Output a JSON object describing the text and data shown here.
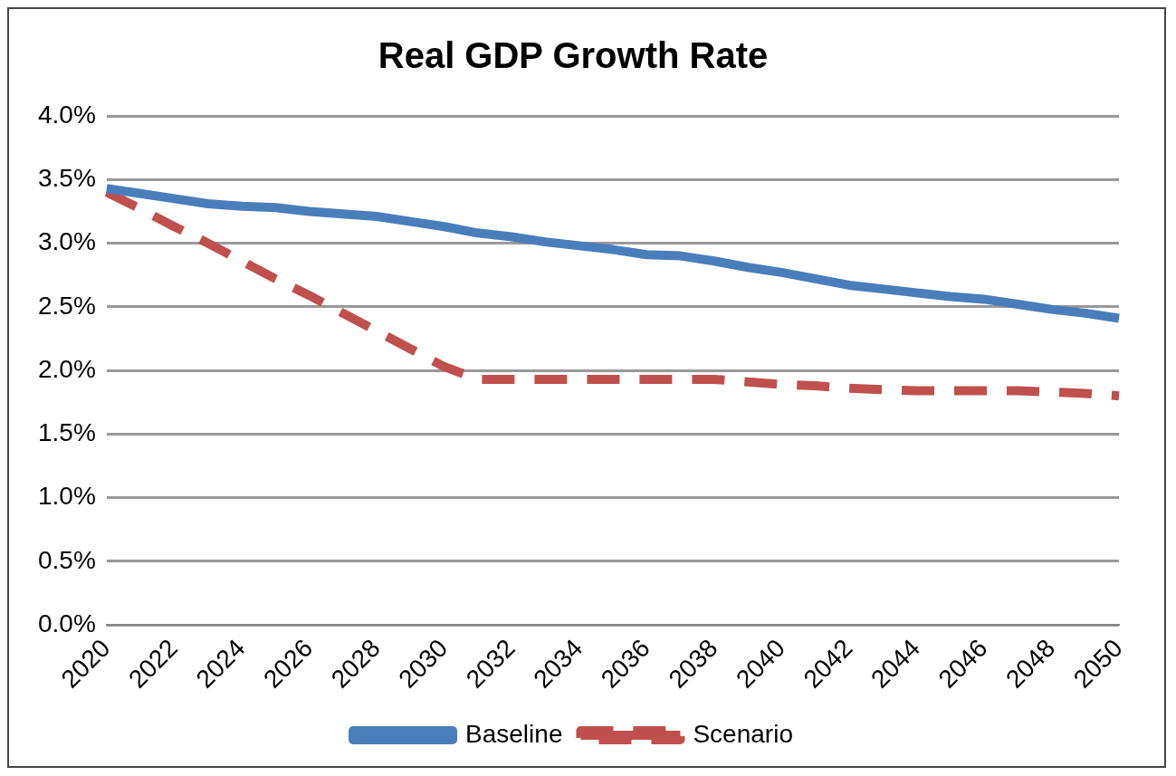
{
  "chart_data": {
    "type": "line",
    "title": "Real GDP Growth Rate",
    "categories": [
      "2020",
      null,
      "2022",
      null,
      "2024",
      null,
      "2026",
      null,
      "2028",
      null,
      "2030",
      null,
      "2032",
      null,
      "2034",
      null,
      "2036",
      null,
      "2038",
      null,
      "2040",
      null,
      "2042",
      null,
      "2044",
      null,
      "2046",
      null,
      "2048",
      null,
      "2050"
    ],
    "series": [
      {
        "name": "Baseline",
        "color": "#4a7ebb",
        "line_style": "solid",
        "values": [
          3.43,
          3.39,
          3.35,
          3.31,
          3.29,
          3.28,
          3.25,
          3.23,
          3.21,
          3.17,
          3.13,
          3.08,
          3.05,
          3.01,
          2.98,
          2.95,
          2.91,
          2.9,
          2.86,
          2.81,
          2.77,
          2.72,
          2.67,
          2.64,
          2.61,
          2.58,
          2.56,
          2.52,
          2.48,
          2.45,
          2.41
        ]
      },
      {
        "name": "Scenario",
        "color": "#c0504d",
        "line_style": "dashed",
        "values": [
          3.4,
          3.27,
          3.13,
          3.0,
          2.86,
          2.72,
          2.59,
          2.45,
          2.31,
          2.17,
          2.03,
          1.93,
          1.93,
          1.93,
          1.93,
          1.93,
          1.93,
          1.93,
          1.93,
          1.91,
          1.89,
          1.88,
          1.86,
          1.85,
          1.84,
          1.84,
          1.84,
          1.84,
          1.83,
          1.82,
          1.8
        ]
      }
    ],
    "ylim": [
      0,
      4
    ],
    "yticks": [
      {
        "value": 0,
        "label": "0.0%"
      },
      {
        "value": 0.5,
        "label": "0.5%"
      },
      {
        "value": 1,
        "label": "1.0%"
      },
      {
        "value": 1.5,
        "label": "1.5%"
      },
      {
        "value": 2,
        "label": "2.0%"
      },
      {
        "value": 2.5,
        "label": "2.5%"
      },
      {
        "value": 3,
        "label": "3.0%"
      },
      {
        "value": 3.5,
        "label": "3.5%"
      },
      {
        "value": 4,
        "label": "4.0%"
      }
    ],
    "grid": "y",
    "legend": "bottom",
    "marker": "none"
  }
}
